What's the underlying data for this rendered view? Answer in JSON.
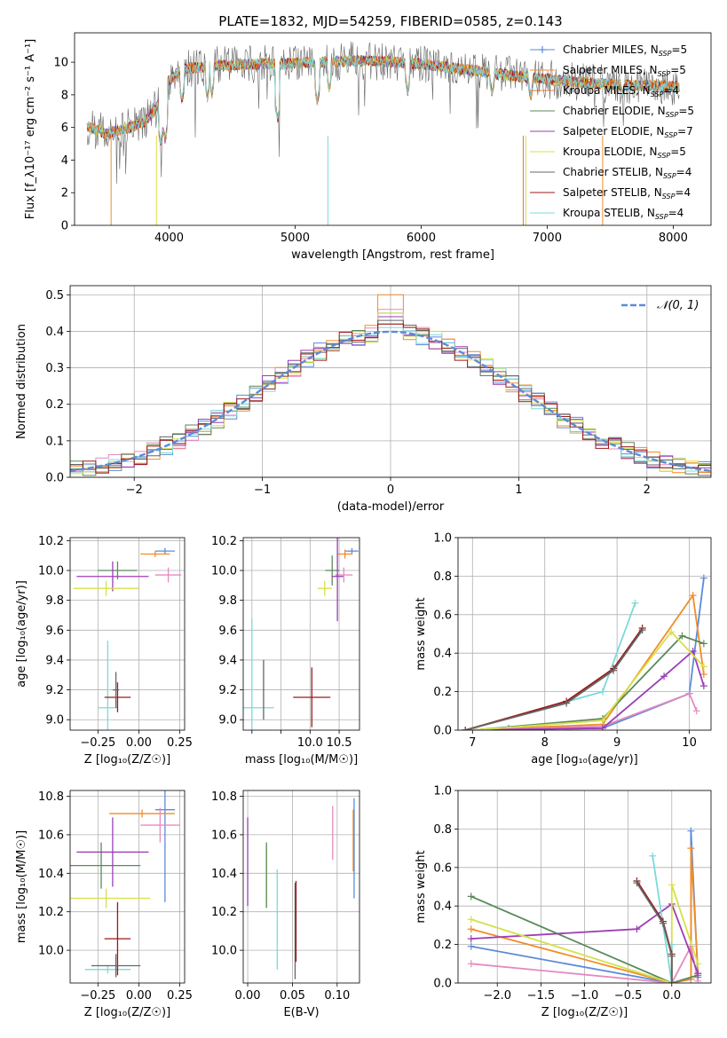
{
  "title": "PLATE=1832, MJD=54259, FIBERID=0585, z=0.143",
  "colors": {
    "chabrier_miles": "#5b8bd9",
    "salpeter_miles": "#f08c28",
    "kroupa_miles": "#e07a30",
    "chabrier_elodie": "#5a8a5a",
    "salpeter_elodie": "#9b3eb3",
    "kroupa_elodie": "#d6e04a",
    "chabrier_stelib": "#666666",
    "salpeter_stelib": "#9a1a1a",
    "kroupa_stelib": "#7dd9d9",
    "pink": "#e58ac0",
    "normal": "#5b8bd9"
  },
  "chart_data": [
    {
      "id": "spectrum",
      "type": "line",
      "xlabel": "wavelength [Angstrom, rest frame]",
      "ylabel": "Flux [f_λ10⁻¹⁷ erg cm⁻² s⁻¹ A⁻¹]",
      "xlim": [
        3250,
        8300
      ],
      "ylim": [
        0,
        11.8
      ],
      "xticks": [
        4000,
        5000,
        6000,
        7000,
        8000
      ],
      "yticks": [
        0,
        2,
        4,
        6,
        8,
        10
      ],
      "legend": "right",
      "series": [
        {
          "name": "Chabrier MILES, N_SSP=5",
          "label": "Chabrier MILES, N",
          "sub": "SSP",
          "suffix": "=5",
          "color_key": "chabrier_miles",
          "marker": "+"
        },
        {
          "name": "Salpeter MILES, N_SSP=5",
          "label": "Salpeter MILES, N",
          "sub": "SSP",
          "suffix": "=5",
          "color_key": "salpeter_miles",
          "marker": ""
        },
        {
          "name": "Kroupa MILES, N_SSP=4",
          "label": "Kroupa MILES, N",
          "sub": "SSP",
          "suffix": "=4",
          "color_key": "kroupa_miles",
          "marker": ""
        },
        {
          "name": "Chabrier ELODIE, N_SSP=5",
          "label": "Chabrier ELODIE, N",
          "sub": "SSP",
          "suffix": "=5",
          "color_key": "chabrier_elodie",
          "marker": ""
        },
        {
          "name": "Salpeter ELODIE, N_SSP=7",
          "label": "Salpeter ELODIE, N",
          "sub": "SSP",
          "suffix": "=7",
          "color_key": "salpeter_elodie",
          "marker": ""
        },
        {
          "name": "Kroupa ELODIE, N_SSP=5",
          "label": "Kroupa ELODIE, N",
          "sub": "SSP",
          "suffix": "=5",
          "color_key": "kroupa_elodie",
          "marker": ""
        },
        {
          "name": "Chabrier STELIB, N_SSP=4",
          "label": "Chabrier STELIB, N",
          "sub": "SSP",
          "suffix": "=4",
          "color_key": "chabrier_stelib",
          "marker": ""
        },
        {
          "name": "Salpeter STELIB, N_SSP=4",
          "label": "Salpeter STELIB, N",
          "sub": "SSP",
          "suffix": "=4",
          "color_key": "salpeter_stelib",
          "marker": ""
        },
        {
          "name": "Kroupa STELIB, N_SSP=4",
          "label": "Kroupa STELIB, N",
          "sub": "SSP",
          "suffix": "=4",
          "color_key": "kroupa_stelib",
          "marker": ""
        }
      ],
      "continuum": [
        [
          3350,
          6.1
        ],
        [
          3500,
          5.6
        ],
        [
          3650,
          5.9
        ],
        [
          3800,
          6.3
        ],
        [
          3900,
          7.2
        ],
        [
          3990,
          8.8
        ],
        [
          4100,
          9.6
        ],
        [
          4400,
          9.8
        ],
        [
          4800,
          9.9
        ],
        [
          5200,
          10.0
        ],
        [
          5600,
          10.1
        ],
        [
          6000,
          9.9
        ],
        [
          6400,
          9.5
        ],
        [
          6800,
          9.1
        ],
        [
          7200,
          8.8
        ],
        [
          7600,
          8.6
        ],
        [
          8050,
          8.5
        ]
      ],
      "absorption_features": [
        [
          3934,
          5.0
        ],
        [
          3969,
          5.2
        ],
        [
          4102,
          7.6
        ],
        [
          4304,
          7.8
        ],
        [
          4340,
          8.0
        ],
        [
          4861,
          6.5
        ],
        [
          5175,
          7.5
        ],
        [
          5270,
          8.3
        ],
        [
          5893,
          8.1
        ],
        [
          6563,
          8.0
        ],
        [
          6870,
          7.8
        ],
        [
          7600,
          7.9
        ]
      ]
    },
    {
      "id": "residuals",
      "type": "histogram",
      "xlabel": "(data-model)/error",
      "ylabel": "Normed distribution",
      "xlim": [
        -2.5,
        2.5
      ],
      "ylim": [
        0,
        0.525
      ],
      "xticks": [
        -2,
        -1,
        0,
        1,
        2
      ],
      "yticks": [
        0.0,
        0.1,
        0.2,
        0.3,
        0.4,
        0.5
      ],
      "bin_width": 0.1,
      "legend": "top-right",
      "gaussian_label": "𝒩(0, 1)",
      "peak_values": [
        0.45,
        0.5,
        0.46,
        0.42,
        0.44,
        0.45,
        0.41,
        0.43,
        0.42
      ]
    },
    {
      "id": "age_vs_Z",
      "type": "errorbar",
      "xlabel": "Z [log₁₀(Z/Z☉)]",
      "ylabel": "age  [log₁₀(age/yr)]",
      "xlim": [
        -0.42,
        0.28
      ],
      "ylim": [
        8.93,
        10.22
      ],
      "xticks": [
        -0.25,
        0.0,
        0.25
      ],
      "xticklabels": [
        "−0.25",
        "0.00",
        "0.25"
      ],
      "yticks": [
        9.0,
        9.2,
        9.4,
        9.6,
        9.8,
        10.0,
        10.2
      ],
      "points": [
        {
          "c": "chabrier_miles",
          "x": 0.16,
          "xe": 0.06,
          "y": 10.13,
          "ye": 0.02
        },
        {
          "c": "salpeter_miles",
          "x": 0.1,
          "xe": 0.09,
          "y": 10.11,
          "ye": 0.02
        },
        {
          "c": "pink",
          "x": 0.18,
          "xe": 0.08,
          "y": 9.97,
          "ye": 0.05
        },
        {
          "c": "chabrier_elodie",
          "x": -0.13,
          "xe": 0.12,
          "y": 10.0,
          "ye": 0.06
        },
        {
          "c": "salpeter_elodie",
          "x": -0.16,
          "xe": 0.22,
          "y": 9.96,
          "ye": 0.1
        },
        {
          "c": "kroupa_elodie",
          "x": -0.2,
          "xe": 0.2,
          "y": 9.88,
          "ye": 0.05
        },
        {
          "c": "kroupa_stelib",
          "x": -0.19,
          "xe": 0.06,
          "y": 9.08,
          "ye": 0.45
        },
        {
          "c": "salpeter_stelib",
          "x": -0.13,
          "xe": 0.08,
          "y": 9.15,
          "ye": 0.1
        },
        {
          "c": "chabrier_stelib",
          "x": -0.14,
          "xe": 0.02,
          "y": 9.2,
          "ye": 0.12
        }
      ]
    },
    {
      "id": "age_vs_mass",
      "type": "errorbar",
      "xlabel": "mass [log₁₀(M/M☉)]",
      "ylabel": "",
      "xlim": [
        8.85,
        10.85
      ],
      "ylim": [
        8.93,
        10.22
      ],
      "xticks": [
        9.0,
        9.5,
        10.0,
        10.5
      ],
      "xticklabels": [
        "",
        "",
        "10.0",
        "10.5"
      ],
      "yticks": [
        9.0,
        9.2,
        9.4,
        9.6,
        9.8,
        10.0,
        10.2
      ],
      "points": [
        {
          "c": "chabrier_miles",
          "x": 10.72,
          "xe": 0.11,
          "y": 10.13,
          "ye": 0.02
        },
        {
          "c": "salpeter_miles",
          "x": 10.6,
          "xe": 0.13,
          "y": 10.11,
          "ye": 0.03
        },
        {
          "c": "pink",
          "x": 10.58,
          "xe": 0.15,
          "y": 9.97,
          "ye": 0.05
        },
        {
          "c": "chabrier_elodie",
          "x": 10.38,
          "xe": 0.12,
          "y": 10.0,
          "ye": 0.1
        },
        {
          "c": "salpeter_elodie",
          "x": 10.47,
          "xe": 0.1,
          "y": 9.96,
          "ye": 0.3
        },
        {
          "c": "kroupa_elodie",
          "x": 10.25,
          "xe": 0.12,
          "y": 9.88,
          "ye": 0.05
        },
        {
          "c": "kroupa_stelib",
          "x": 9.0,
          "xe": 0.38,
          "y": 9.08,
          "ye": 0.6
        },
        {
          "c": "salpeter_stelib",
          "x": 10.03,
          "xe": 0.32,
          "y": 9.15,
          "ye": 0.2
        },
        {
          "c": "chabrier_stelib",
          "x": 9.2,
          "xe": 0.01,
          "y": 9.2,
          "ye": 0.2
        }
      ]
    },
    {
      "id": "massweight_vs_age",
      "type": "line",
      "xlabel": "age  [log₁₀(age/yr)]",
      "ylabel": "mass weight",
      "xlim": [
        6.8,
        10.3
      ],
      "ylim": [
        0,
        1.0
      ],
      "xticks": [
        7,
        8,
        9,
        10
      ],
      "yticks": [
        0.0,
        0.2,
        0.4,
        0.6,
        0.8,
        1.0
      ],
      "series": [
        {
          "c": "chabrier_miles",
          "x": [
            7.5,
            8.8,
            10.0,
            10.2
          ],
          "y": [
            0.01,
            0.01,
            0.19,
            0.79
          ]
        },
        {
          "c": "salpeter_miles",
          "x": [
            6.9,
            8.8,
            10.05,
            10.2
          ],
          "y": [
            0.0,
            0.03,
            0.7,
            0.29
          ]
        },
        {
          "c": "pink",
          "x": [
            6.9,
            8.8,
            10.0,
            10.1
          ],
          "y": [
            0.0,
            0.02,
            0.19,
            0.1
          ]
        },
        {
          "c": "chabrier_elodie",
          "x": [
            7.0,
            8.8,
            9.9,
            10.2
          ],
          "y": [
            0.0,
            0.06,
            0.49,
            0.45
          ]
        },
        {
          "c": "salpeter_elodie",
          "x": [
            6.9,
            8.8,
            9.65,
            10.05,
            10.2
          ],
          "y": [
            0.0,
            0.01,
            0.28,
            0.41,
            0.23
          ]
        },
        {
          "c": "kroupa_elodie",
          "x": [
            7.0,
            8.8,
            9.75,
            10.2
          ],
          "y": [
            0.0,
            0.05,
            0.51,
            0.33
          ]
        },
        {
          "c": "kroupa_stelib",
          "x": [
            6.9,
            8.8,
            9.25
          ],
          "y": [
            0.0,
            0.2,
            0.66
          ]
        },
        {
          "c": "salpeter_stelib",
          "x": [
            6.9,
            8.3,
            8.95,
            9.35
          ],
          "y": [
            0.0,
            0.15,
            0.32,
            0.53
          ]
        },
        {
          "c": "chabrier_stelib",
          "x": [
            6.9,
            8.3,
            8.95,
            9.35
          ],
          "y": [
            0.0,
            0.14,
            0.31,
            0.52
          ]
        }
      ]
    },
    {
      "id": "mass_vs_Z",
      "type": "errorbar",
      "xlabel": "Z [log₁₀(Z/Z☉)]",
      "ylabel": "mass [log₁₀(M/M☉)]",
      "xlim": [
        -0.42,
        0.28
      ],
      "ylim": [
        9.83,
        10.83
      ],
      "xticks": [
        -0.25,
        0.0,
        0.25
      ],
      "xticklabels": [
        "−0.25",
        "0.00",
        "0.25"
      ],
      "yticks": [
        10.0,
        10.2,
        10.4,
        10.6,
        10.8
      ],
      "points": [
        {
          "c": "chabrier_miles",
          "x": 0.16,
          "xe": 0.06,
          "y": 10.73,
          "ye": 0.48
        },
        {
          "c": "salpeter_miles",
          "x": 0.02,
          "xe": 0.2,
          "y": 10.71,
          "ye": 0.02
        },
        {
          "c": "pink",
          "x": 0.13,
          "xe": 0.12,
          "y": 10.65,
          "ye": 0.09
        },
        {
          "c": "chabrier_elodie",
          "x": -0.23,
          "xe": 0.24,
          "y": 10.44,
          "ye": 0.12
        },
        {
          "c": "salpeter_elodie",
          "x": -0.16,
          "xe": 0.22,
          "y": 10.51,
          "ye": 0.18
        },
        {
          "c": "kroupa_elodie",
          "x": -0.2,
          "xe": 0.27,
          "y": 10.27,
          "ye": 0.05
        },
        {
          "c": "kroupa_stelib",
          "x": -0.19,
          "xe": 0.14,
          "y": 9.9,
          "ye": 0.02
        },
        {
          "c": "salpeter_stelib",
          "x": -0.13,
          "xe": 0.08,
          "y": 10.06,
          "ye": 0.19
        },
        {
          "c": "chabrier_stelib",
          "x": -0.14,
          "xe": 0.15,
          "y": 9.92,
          "ye": 0.06
        }
      ]
    },
    {
      "id": "mass_vs_ebv",
      "type": "errorbar",
      "xlabel": "E(B-V)",
      "ylabel": "",
      "xlim": [
        -0.005,
        0.125
      ],
      "ylim": [
        9.83,
        10.83
      ],
      "xticks": [
        0.0,
        0.05,
        0.1
      ],
      "xticklabels": [
        "0.00",
        "0.05",
        "0.10"
      ],
      "yticks": [
        10.0,
        10.2,
        10.4,
        10.6,
        10.8
      ],
      "points": [
        {
          "c": "salpeter_elodie",
          "x": 0.0,
          "y": 10.46,
          "ye": 0.23
        },
        {
          "c": "kroupa_elodie",
          "x": 0.021,
          "y": 10.38,
          "ye": 0.16
        },
        {
          "c": "chabrier_elodie",
          "x": 0.021,
          "y": 10.39,
          "ye": 0.17
        },
        {
          "c": "kroupa_stelib",
          "x": 0.033,
          "y": 10.16,
          "ye": 0.26
        },
        {
          "c": "chabrier_stelib",
          "x": 0.053,
          "y": 10.1,
          "ye": 0.25
        },
        {
          "c": "salpeter_stelib",
          "x": 0.054,
          "y": 10.15,
          "ye": 0.21
        },
        {
          "c": "pink",
          "x": 0.095,
          "y": 10.61,
          "ye": 0.14
        },
        {
          "c": "salpeter_miles",
          "x": 0.118,
          "y": 10.57,
          "ye": 0.16
        },
        {
          "c": "chabrier_miles",
          "x": 0.119,
          "y": 10.53,
          "ye": 0.26
        }
      ]
    },
    {
      "id": "massweight_vs_Z",
      "type": "line",
      "xlabel": "Z [log₁₀(Z/Z☉)]",
      "ylabel": "mass weight",
      "xlim": [
        -2.45,
        0.45
      ],
      "ylim": [
        0,
        1.0
      ],
      "xticks": [
        -2.0,
        -1.5,
        -1.0,
        -0.5,
        0.0
      ],
      "xticklabels": [
        "−2.0",
        "−1.5",
        "−1.0",
        "−0.5",
        "0.0"
      ],
      "yticks": [
        0.0,
        0.2,
        0.4,
        0.6,
        0.8,
        1.0
      ],
      "series": [
        {
          "c": "chabrier_miles",
          "x": [
            -2.3,
            0.0,
            0.22,
            0.22,
            0.3
          ],
          "y": [
            0.19,
            0.0,
            0.02,
            0.79,
            0.03
          ]
        },
        {
          "c": "salpeter_miles",
          "x": [
            -2.3,
            0.0,
            0.22,
            0.22,
            0.3
          ],
          "y": [
            0.28,
            0.0,
            0.02,
            0.7,
            0.05
          ]
        },
        {
          "c": "pink",
          "x": [
            -2.3,
            0.0,
            0.22,
            0.3
          ],
          "y": [
            0.1,
            0.0,
            0.19,
            0.01
          ]
        },
        {
          "c": "chabrier_elodie",
          "x": [
            -2.3,
            0.0,
            0.3
          ],
          "y": [
            0.45,
            0.0,
            0.04
          ]
        },
        {
          "c": "salpeter_elodie",
          "x": [
            -2.3,
            -0.4,
            0.0,
            0.3
          ],
          "y": [
            0.23,
            0.28,
            0.41,
            0.05
          ]
        },
        {
          "c": "kroupa_elodie",
          "x": [
            -2.3,
            0.0,
            0.0,
            0.3
          ],
          "y": [
            0.33,
            0.0,
            0.51,
            0.1
          ]
        },
        {
          "c": "kroupa_stelib",
          "x": [
            -0.22,
            0.0,
            0.0
          ],
          "y": [
            0.66,
            0.0,
            0.2
          ]
        },
        {
          "c": "salpeter_stelib",
          "x": [
            -0.4,
            -0.1,
            0.0,
            0.0
          ],
          "y": [
            0.53,
            0.32,
            0.15,
            0.0
          ]
        },
        {
          "c": "chabrier_stelib",
          "x": [
            -0.4,
            -0.1,
            0.0,
            0.0
          ],
          "y": [
            0.52,
            0.31,
            0.14,
            0.0
          ]
        }
      ]
    }
  ]
}
